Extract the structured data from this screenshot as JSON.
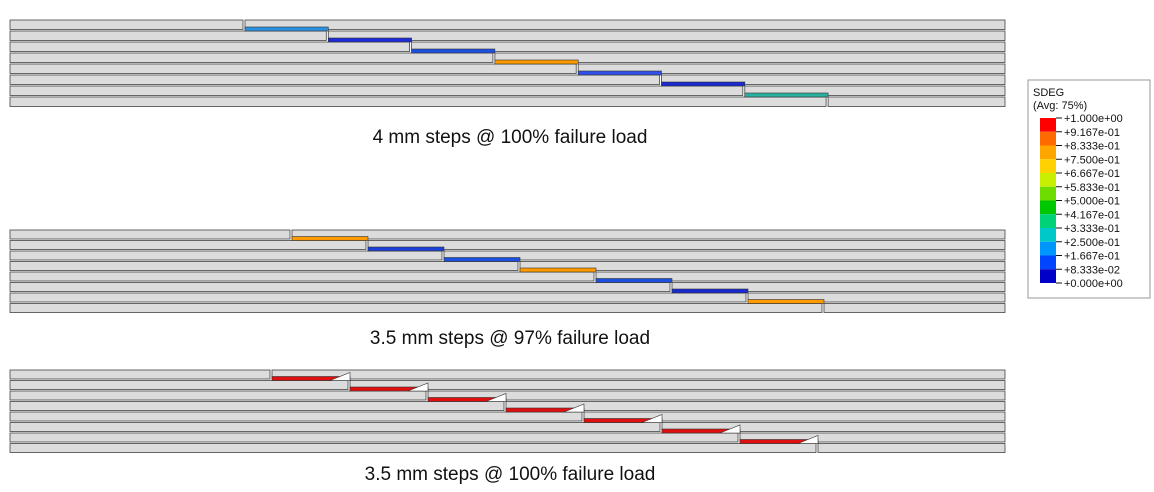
{
  "panels": [
    {
      "caption": "4 mm steps @ 100% failure load"
    },
    {
      "caption": "3.5 mm steps @ 97% failure load"
    },
    {
      "caption": "3.5 mm steps @ 100% failure load"
    }
  ],
  "legend": {
    "title": "SDEG",
    "subtitle": "(Avg: 75%)",
    "labels": [
      "+1.000e+00",
      "+9.167e-01",
      "+8.333e-01",
      "+7.500e-01",
      "+6.667e-01",
      "+5.833e-01",
      "+5.000e-01",
      "+4.167e-01",
      "+3.333e-01",
      "+2.500e-01",
      "+1.667e-01",
      "+8.333e-02",
      "+0.000e+00"
    ],
    "colors": [
      "#ff0000",
      "#ff6a00",
      "#ffa500",
      "#ffd200",
      "#c8ee00",
      "#6edc00",
      "#00c800",
      "#00d278",
      "#00c8c8",
      "#0096ff",
      "#0046ff",
      "#0000c8"
    ]
  }
}
